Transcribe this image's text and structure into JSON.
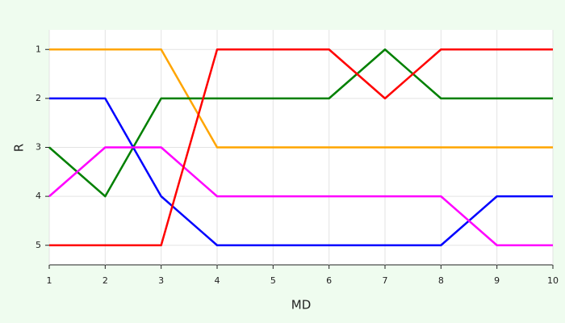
{
  "chart_data": {
    "type": "line",
    "x_label": "MD",
    "y_label": "R",
    "x": [
      1,
      2,
      3,
      4,
      5,
      6,
      7,
      8,
      9,
      10
    ],
    "series": [
      {
        "color": "#ffa500",
        "values": [
          1,
          1,
          1,
          3,
          3,
          3,
          3,
          3,
          3,
          3
        ]
      },
      {
        "color": "#008000",
        "values": [
          3,
          4,
          2,
          2,
          2,
          2,
          1,
          2,
          2,
          2
        ]
      },
      {
        "color": "#0000ff",
        "values": [
          2,
          2,
          4,
          5,
          5,
          5,
          5,
          5,
          4,
          4
        ]
      },
      {
        "color": "#ff00ff",
        "values": [
          4,
          3,
          3,
          4,
          4,
          4,
          4,
          4,
          5,
          5
        ]
      },
      {
        "color": "#ff0000",
        "values": [
          5,
          5,
          5,
          1,
          1,
          1,
          2,
          1,
          1,
          1
        ]
      }
    ],
    "xlim": [
      1,
      10
    ],
    "xticks": [
      1,
      2,
      3,
      4,
      5,
      6,
      7,
      8,
      9,
      10
    ],
    "ylim": [
      5.4,
      0.6
    ],
    "yticks": [
      1,
      2,
      3,
      4,
      5
    ],
    "grid": true
  }
}
